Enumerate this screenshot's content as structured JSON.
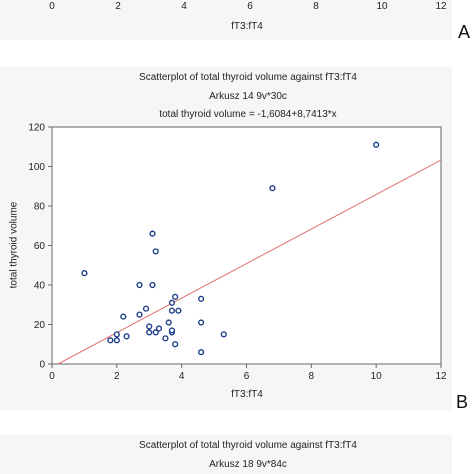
{
  "top_fragment": {
    "x_ticks": [
      "0",
      "2",
      "4",
      "6",
      "8",
      "10",
      "12"
    ],
    "x_label": "fT3:fT4",
    "panel_letter": "A"
  },
  "chart_data": {
    "type": "scatter",
    "title": "Scatterplot of total thyroid volume against fT3:fT4",
    "subtitle": "Arkusz 14 9v*30c",
    "equation": "total thyroid volume = -1,6084+8,7413*x",
    "xlabel": "fT3:fT4",
    "ylabel": "total thyroid volume",
    "xlim": [
      0,
      12
    ],
    "ylim": [
      0,
      120
    ],
    "x_ticks": [
      "0",
      "2",
      "4",
      "6",
      "8",
      "10",
      "12"
    ],
    "y_ticks": [
      "0",
      "20",
      "40",
      "60",
      "80",
      "100",
      "120"
    ],
    "grid": false,
    "regression": {
      "intercept": -1.6084,
      "slope": 8.7413
    },
    "colors": {
      "points": "#1f3f8a",
      "line": "#e07070"
    },
    "points": [
      [
        1.0,
        46
      ],
      [
        1.8,
        12
      ],
      [
        2.0,
        12
      ],
      [
        2.0,
        15
      ],
      [
        2.2,
        24
      ],
      [
        2.3,
        14
      ],
      [
        2.7,
        25
      ],
      [
        2.7,
        40
      ],
      [
        2.9,
        28
      ],
      [
        3.0,
        16
      ],
      [
        3.0,
        19
      ],
      [
        3.1,
        40
      ],
      [
        3.1,
        66
      ],
      [
        3.2,
        57
      ],
      [
        3.2,
        16
      ],
      [
        3.3,
        18
      ],
      [
        3.5,
        13
      ],
      [
        3.6,
        21
      ],
      [
        3.7,
        16
      ],
      [
        3.7,
        17
      ],
      [
        3.7,
        27
      ],
      [
        3.7,
        31
      ],
      [
        3.8,
        34
      ],
      [
        3.8,
        10
      ],
      [
        3.9,
        27
      ],
      [
        4.6,
        33
      ],
      [
        4.6,
        21
      ],
      [
        4.6,
        6
      ],
      [
        5.3,
        15
      ],
      [
        6.8,
        89
      ],
      [
        10.0,
        111
      ]
    ],
    "panel_letter": "B"
  },
  "bottom_fragment": {
    "title": "Scatterplot of total thyroid volume against fT3:fT4",
    "subtitle": "Arkusz 18 9v*84c"
  }
}
